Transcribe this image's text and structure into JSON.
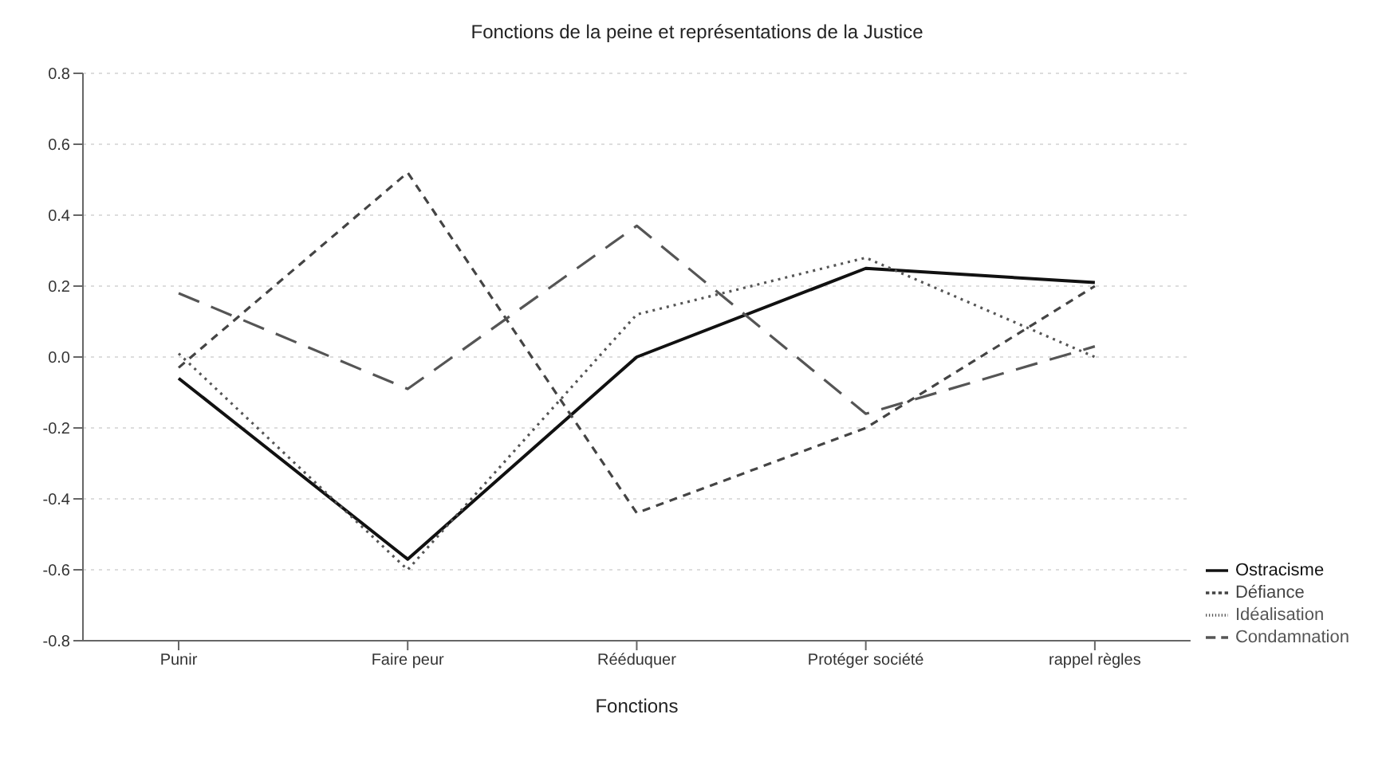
{
  "chart_data": {
    "type": "line",
    "title": "Fonctions de la peine et représentations de la Justice",
    "xlabel": "Fonctions",
    "categories": [
      "Punir",
      "Faire peur",
      "Rééduquer",
      "Protéger société",
      "rappel règles"
    ],
    "series": [
      {
        "name": "Ostracisme",
        "color": "#111111",
        "line_style": "solid",
        "values": [
          -0.06,
          -0.57,
          0.0,
          0.25,
          0.21
        ]
      },
      {
        "name": "Défiance",
        "color": "#444444",
        "line_style": "dashed",
        "values": [
          -0.03,
          0.52,
          -0.44,
          -0.2,
          0.2
        ]
      },
      {
        "name": "Idéalisation",
        "color": "#555555",
        "line_style": "dotted",
        "values": [
          0.01,
          -0.6,
          0.12,
          0.28,
          0.0
        ]
      },
      {
        "name": "Condamnation",
        "color": "#555555",
        "line_style": "longdash",
        "values": [
          0.18,
          -0.09,
          0.37,
          -0.16,
          0.03
        ]
      }
    ],
    "ylim": [
      -0.8,
      0.8
    ],
    "yticks": [
      {
        "value": -0.8,
        "label": "-0.8"
      },
      {
        "value": -0.6,
        "label": "-0.6"
      },
      {
        "value": -0.4,
        "label": "-0.4"
      },
      {
        "value": -0.2,
        "label": "-0.2"
      },
      {
        "value": 0,
        "label": "0.0"
      },
      {
        "value": 0.2,
        "label": "0.2"
      },
      {
        "value": 0.4,
        "label": "0.4"
      },
      {
        "value": 0.6,
        "label": "0.6"
      },
      {
        "value": 0.8,
        "label": "0.8"
      }
    ],
    "grid": "y",
    "legend": "bottom right",
    "marker": "none"
  }
}
